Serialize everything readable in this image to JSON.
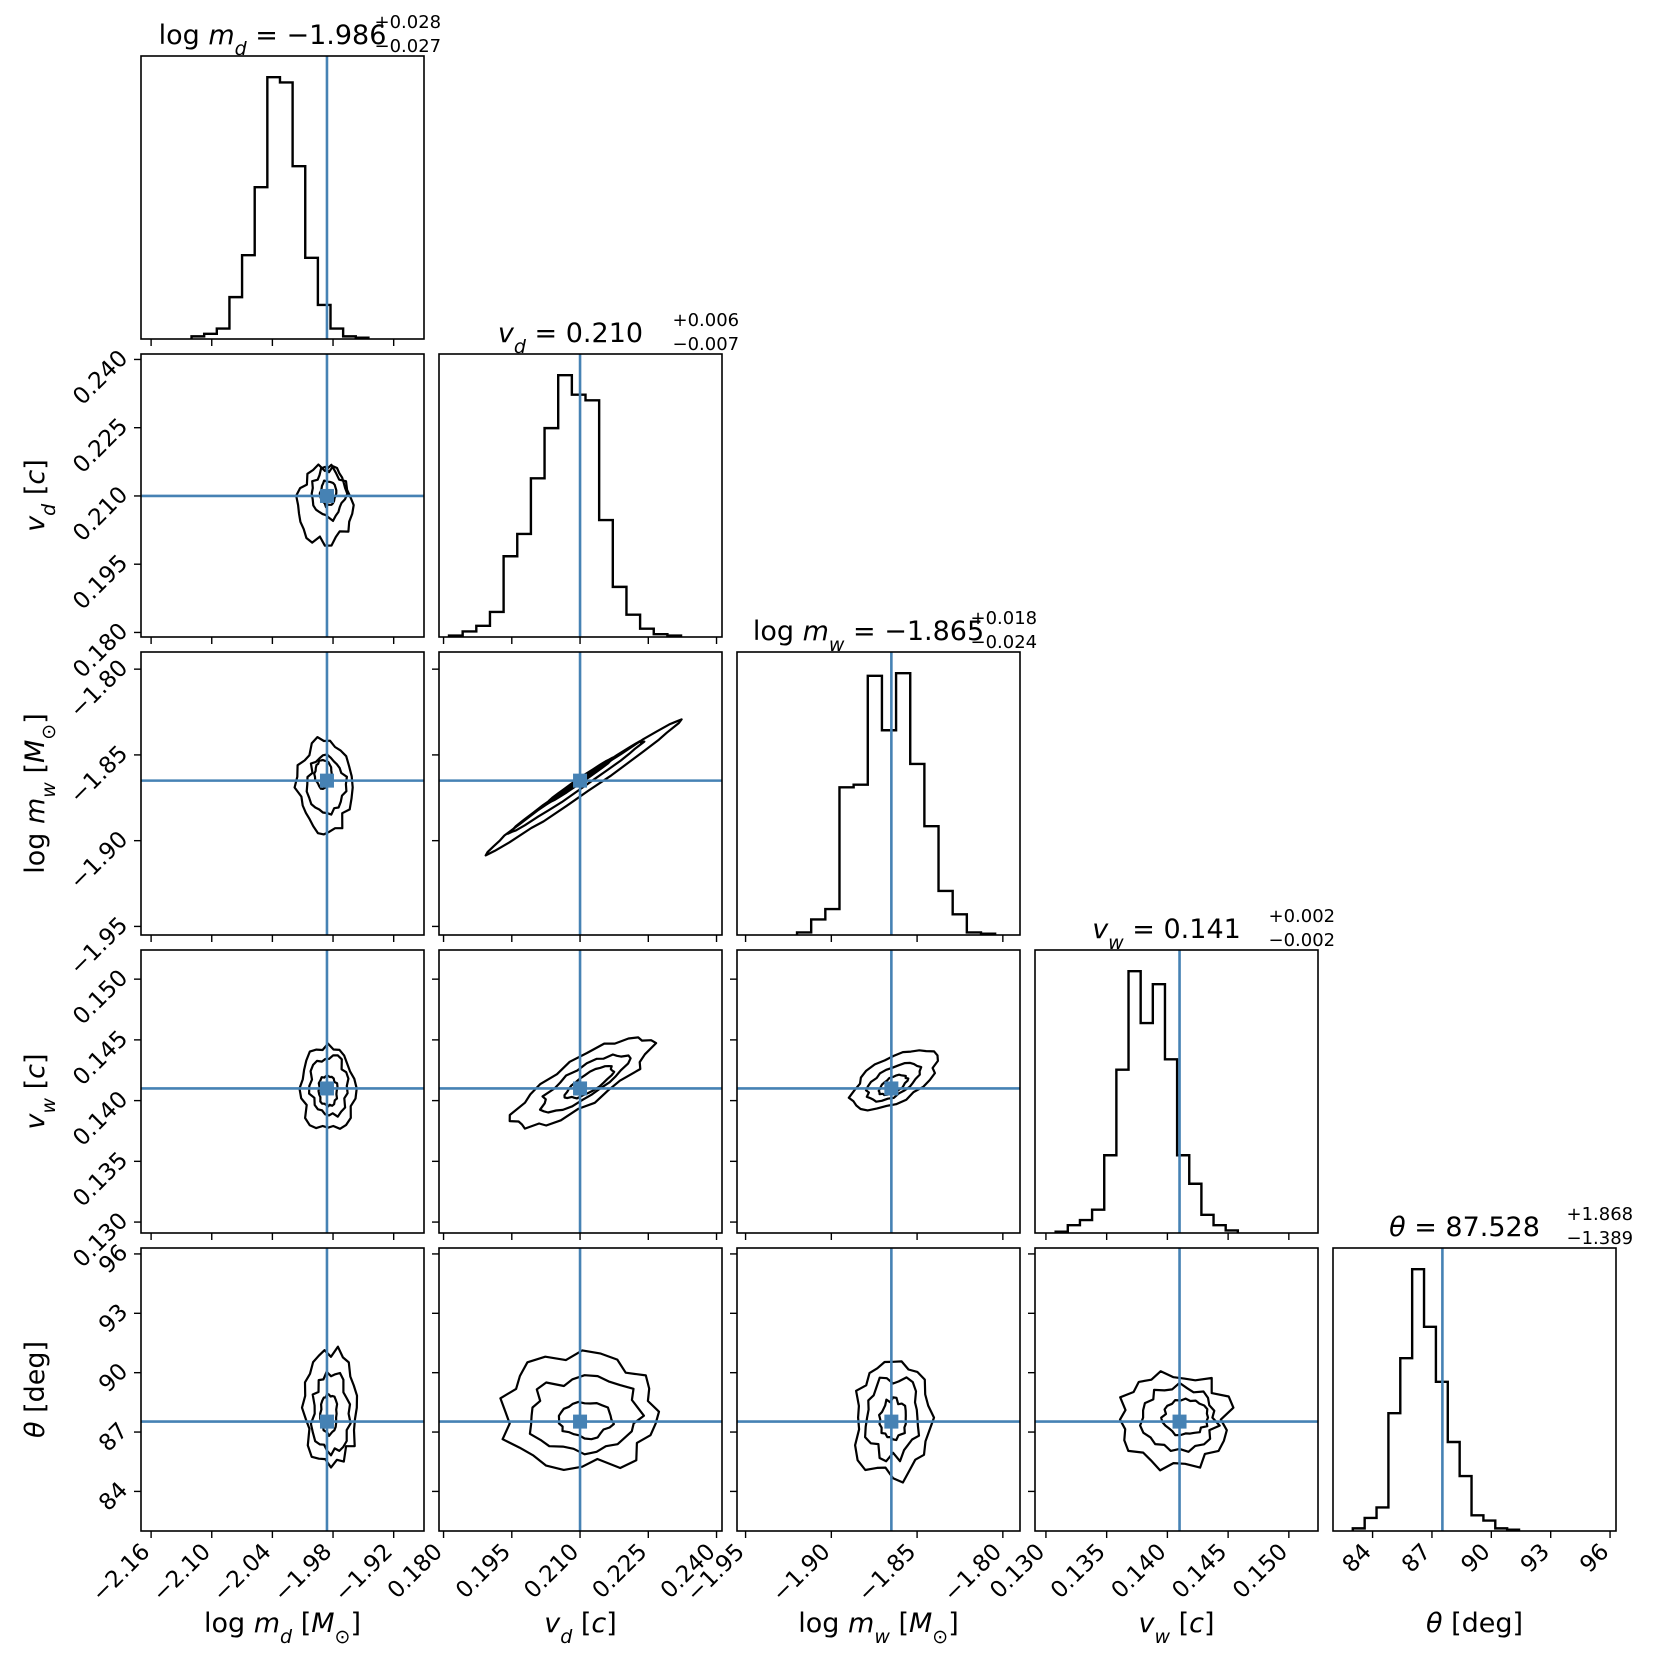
{
  "chart_data": {
    "type": "corner",
    "truth_color": "#4682b4",
    "parameters": [
      {
        "key": "log_md",
        "label_parts": [
          [
            "log ",
            "n"
          ],
          [
            "m",
            "i"
          ],
          [
            "d",
            "sub"
          ],
          [
            " [",
            "n"
          ],
          [
            "M",
            "i"
          ],
          [
            "⊙",
            "sub"
          ],
          [
            "]",
            "n"
          ]
        ],
        "title_main_parts": [
          [
            "log ",
            "n"
          ],
          [
            "m",
            "i"
          ],
          [
            "d",
            "sub"
          ],
          [
            " = −1.986",
            "n"
          ]
        ],
        "title_plus": "+0.028",
        "title_minus": "−0.027",
        "median": -1.986,
        "range": [
          -2.17,
          -1.89
        ],
        "ticks": [
          -2.16,
          -2.1,
          -2.04,
          -1.98,
          -1.92
        ],
        "tick_labels": [
          "−2.16",
          "−2.10",
          "−2.04",
          "−1.98",
          "−1.92"
        ],
        "hist": {
          "bin_start": -2.12,
          "bin_width": 0.0125,
          "counts": [
            1,
            2,
            4,
            16,
            32,
            58,
            100,
            98,
            66,
            31,
            13,
            4,
            1,
            0.5
          ]
        }
      },
      {
        "key": "v_d",
        "label_parts": [
          [
            "v",
            "i"
          ],
          [
            "d",
            "sub"
          ],
          [
            " [",
            "n"
          ],
          [
            "c",
            "i"
          ],
          [
            "]",
            "n"
          ]
        ],
        "title_main_parts": [
          [
            "v",
            "i"
          ],
          [
            "d",
            "sub"
          ],
          [
            " = 0.210",
            "n"
          ]
        ],
        "title_plus": "+0.006",
        "title_minus": "−0.007",
        "median": 0.21,
        "range": [
          0.179,
          0.2412
        ],
        "ticks": [
          0.18,
          0.195,
          0.21,
          0.225,
          0.24
        ],
        "tick_labels": [
          "0.180",
          "0.195",
          "0.210",
          "0.225",
          "0.240"
        ],
        "hist": {
          "bin_start": 0.1812,
          "bin_width": 0.003,
          "counts": [
            0.5,
            2,
            4,
            9,
            29,
            37,
            57,
            75,
            94,
            87,
            85,
            42,
            18,
            8,
            3,
            1,
            0.5
          ]
        }
      },
      {
        "key": "log_mw",
        "label_parts": [
          [
            "log ",
            "n"
          ],
          [
            "m",
            "i"
          ],
          [
            "w",
            "sub"
          ],
          [
            " [",
            "n"
          ],
          [
            "M",
            "i"
          ],
          [
            "⊙",
            "sub"
          ],
          [
            "]",
            "n"
          ]
        ],
        "title_main_parts": [
          [
            "log ",
            "n"
          ],
          [
            "m",
            "i"
          ],
          [
            "w",
            "sub"
          ],
          [
            " = −1.865",
            "n"
          ]
        ],
        "title_plus": "+0.018",
        "title_minus": "−0.024",
        "median": -1.865,
        "range": [
          -1.955,
          -1.79
        ],
        "ticks": [
          -1.95,
          -1.9,
          -1.85,
          -1.8
        ],
        "tick_labels": [
          "−1.95",
          "−1.90",
          "−1.85",
          "−1.80"
        ],
        "hist": {
          "bin_start": -1.92,
          "bin_width": 0.00825,
          "counts": [
            1,
            6,
            10,
            57,
            58,
            100,
            79,
            101,
            66,
            42,
            17,
            8,
            1,
            0.5
          ]
        }
      },
      {
        "key": "v_w",
        "label_parts": [
          [
            "v",
            "i"
          ],
          [
            "w",
            "sub"
          ],
          [
            " [",
            "n"
          ],
          [
            "c",
            "i"
          ],
          [
            "]",
            "n"
          ]
        ],
        "title_main_parts": [
          [
            "v",
            "i"
          ],
          [
            "w",
            "sub"
          ],
          [
            " = 0.141",
            "n"
          ]
        ],
        "title_plus": "+0.002",
        "title_minus": "−0.002",
        "median": 0.141,
        "range": [
          0.1291,
          0.1524
        ],
        "ticks": [
          0.13,
          0.135,
          0.14,
          0.145,
          0.15
        ],
        "tick_labels": [
          "0.130",
          "0.135",
          "0.140",
          "0.145",
          "0.150"
        ],
        "hist": {
          "bin_start": 0.1308,
          "bin_width": 0.001,
          "counts": [
            0.5,
            3,
            5,
            9,
            30,
            63,
            101,
            81,
            96,
            67,
            30,
            19,
            7,
            3,
            1
          ]
        }
      },
      {
        "key": "theta",
        "label_parts": [
          [
            "θ",
            "i"
          ],
          [
            " [deg]",
            "n"
          ]
        ],
        "title_main_parts": [
          [
            "θ",
            "i"
          ],
          [
            " = 87.528",
            "n"
          ]
        ],
        "title_plus": "+1.868",
        "title_minus": "−1.389",
        "median": 87.528,
        "range": [
          82.0,
          96.3
        ],
        "ticks": [
          84,
          87,
          90,
          93,
          96
        ],
        "tick_labels": [
          "84",
          "87",
          "90",
          "93",
          "96"
        ],
        "hist": {
          "bin_start": 83.0,
          "bin_width": 0.6,
          "counts": [
            1,
            5,
            9,
            45,
            66,
            100,
            78,
            57,
            34,
            21,
            6,
            4,
            1,
            0.5
          ]
        }
      }
    ],
    "contours": [
      {
        "i": 0,
        "j": 1,
        "levels": [
          {
            "s": [
              0.026,
              0.0082
            ],
            "rot": 0,
            "w": 0.28,
            "off": [
              -0.002,
              -0.002
            ]
          },
          {
            "s": [
              0.016,
              0.0055
            ],
            "rot": 0,
            "w": 0.3,
            "off": [
              0.002,
              0.0005
            ]
          },
          {
            "s": [
              0.008,
              0.0028
            ],
            "rot": 0,
            "w": 0.25,
            "off": [
              0.001,
              0.0006
            ]
          }
        ]
      },
      {
        "i": 0,
        "j": 2,
        "levels": [
          {
            "s": [
              0.026,
              0.027
            ],
            "rot": 0,
            "w": 0.28,
            "off": [
              -0.003,
              -0.004
            ]
          },
          {
            "s": [
              0.018,
              0.017
            ],
            "rot": 0,
            "w": 0.3,
            "off": [
              0,
              -0.002
            ]
          },
          {
            "s": [
              0.008,
              0.008
            ],
            "rot": 0,
            "w": 0.25,
            "off": [
              -0.004,
              0.004
            ]
          }
        ]
      },
      {
        "i": 0,
        "j": 3,
        "levels": [
          {
            "s": [
              0.026,
              0.0035
            ],
            "rot": 0,
            "w": 0.25,
            "off": [
              0.001,
              0
            ]
          },
          {
            "s": [
              0.018,
              0.0025
            ],
            "rot": 0,
            "w": 0.28,
            "off": [
              0.002,
              0.0002
            ]
          },
          {
            "s": [
              0.009,
              0.0013
            ],
            "rot": 0,
            "w": 0.25,
            "off": [
              0.001,
              -0.0002
            ]
          }
        ]
      },
      {
        "i": 0,
        "j": 4,
        "levels": [
          {
            "s": [
              0.027,
              2.8
            ],
            "rot": 0,
            "w": 0.28,
            "off": [
              0.004,
              0.7
            ]
          },
          {
            "s": [
              0.018,
              2.0
            ],
            "rot": 0,
            "w": 0.3,
            "off": [
              0.004,
              0.4
            ]
          },
          {
            "s": [
              0.008,
              1.0
            ],
            "rot": 0,
            "w": 0.25,
            "off": [
              0.002,
              0.4
            ]
          }
        ]
      },
      {
        "i": 1,
        "j": 2,
        "levels": [
          {
            "s": [
              0.0255,
              0.0038
            ],
            "rot": 0.6,
            "w": 0.15,
            "off": [
              0.001,
              -0.003
            ]
          },
          {
            "s": [
              0.018,
              0.0024
            ],
            "rot": 0.6,
            "w": 0.15,
            "off": [
              -0.001,
              -0.004
            ]
          },
          {
            "s": [
              0.009,
              0.0014
            ],
            "rot": 0.6,
            "w": 0.12,
            "off": [
              0,
              0
            ]
          }
        ]
      },
      {
        "i": 1,
        "j": 3,
        "levels": [
          {
            "s": [
              0.018,
              0.0018
            ],
            "rot": 0.55,
            "w": 0.22,
            "off": [
              0.0005,
              0.0005
            ]
          },
          {
            "s": [
              0.011,
              0.0012
            ],
            "rot": 0.55,
            "w": 0.22,
            "off": [
              0.001,
              0.0005
            ]
          },
          {
            "s": [
              0.006,
              0.0007
            ],
            "rot": 0.55,
            "w": 0.2,
            "off": [
              0.002,
              0.0005
            ]
          }
        ]
      },
      {
        "i": 1,
        "j": 4,
        "levels": [
          {
            "s": [
              0.017,
              2.8
            ],
            "rot": 0,
            "w": 0.3,
            "off": [
              0.0005,
              0.5
            ]
          },
          {
            "s": [
              0.012,
              1.9
            ],
            "rot": 0,
            "w": 0.3,
            "off": [
              0.001,
              0.3
            ]
          },
          {
            "s": [
              0.006,
              0.9
            ],
            "rot": 0,
            "w": 0.25,
            "off": [
              0.001,
              0.1
            ]
          }
        ]
      },
      {
        "i": 2,
        "j": 3,
        "levels": [
          {
            "s": [
              0.027,
              0.0018
            ],
            "rot": 0.5,
            "w": 0.2,
            "off": [
              0.002,
              0.0008
            ]
          },
          {
            "s": [
              0.017,
              0.0011
            ],
            "rot": 0.5,
            "w": 0.2,
            "off": [
              0.001,
              0.0005
            ]
          },
          {
            "s": [
              0.009,
              0.0006
            ],
            "rot": 0.5,
            "w": 0.18,
            "off": [
              0.001,
              0.0003
            ]
          }
        ]
      },
      {
        "i": 2,
        "j": 4,
        "levels": [
          {
            "s": [
              0.023,
              3.0
            ],
            "rot": 0,
            "w": 0.3,
            "off": [
              0.001,
              0.2
            ]
          },
          {
            "s": [
              0.016,
              2.0
            ],
            "rot": 0,
            "w": 0.3,
            "off": [
              0.001,
              0.2
            ]
          },
          {
            "s": [
              0.008,
              1.0
            ],
            "rot": 0,
            "w": 0.28,
            "off": [
              0.001,
              0.1
            ]
          }
        ]
      },
      {
        "i": 3,
        "j": 4,
        "levels": [
          {
            "s": [
              0.0045,
              2.4
            ],
            "rot": 0,
            "w": 0.28,
            "off": [
              -0.0005,
              0.1
            ]
          },
          {
            "s": [
              0.003,
              1.6
            ],
            "rot": 0,
            "w": 0.28,
            "off": [
              0,
              0.2
            ]
          },
          {
            "s": [
              0.0018,
              0.9
            ],
            "rot": 0,
            "w": 0.25,
            "off": [
              0.0005,
              0.2
            ]
          }
        ]
      }
    ]
  }
}
